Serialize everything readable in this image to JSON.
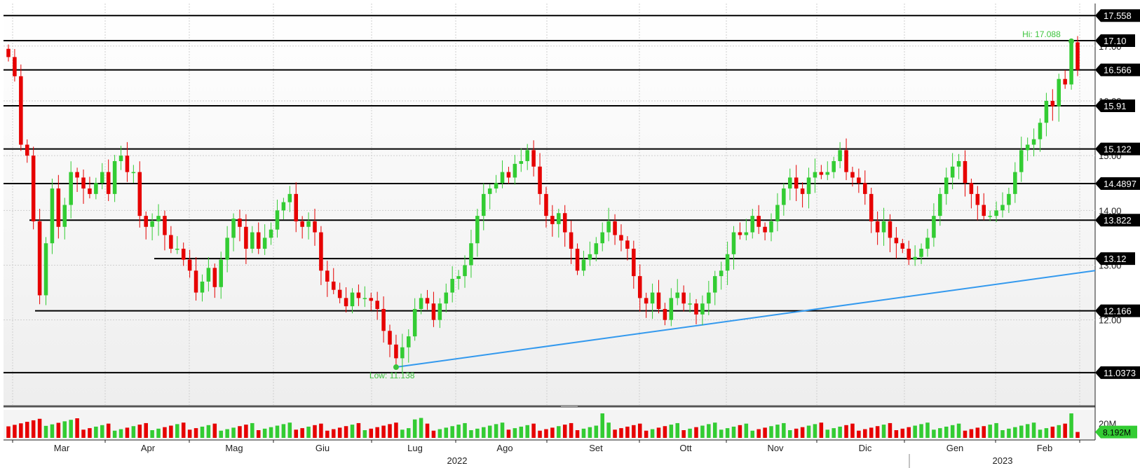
{
  "chart_data": {
    "type": "candlestick",
    "colors": {
      "up": "#33cc33",
      "down": "#e60000",
      "trendline": "#3399ee",
      "level_line": "#000000",
      "hi_low_label": "#3cc43c"
    },
    "y_axis": {
      "range": [
        10.55,
        17.65
      ],
      "tick_labels": [
        "12.00",
        "13.00",
        "14.00",
        "15.00",
        "16.00",
        "17.00"
      ]
    },
    "x_axis": {
      "month_labels": [
        "Mar",
        "Apr",
        "Mag",
        "Giu",
        "Lug",
        "Ago",
        "Set",
        "Ott",
        "Nov",
        "Dic",
        "Gen",
        "Feb"
      ],
      "year_labels": [
        "2022",
        "2023"
      ]
    },
    "levels": [
      "17.558",
      "17.10",
      "16.566",
      "15.91",
      "15.122",
      "14.4897",
      "13.822",
      "13.12",
      "12.166",
      "11.0373"
    ],
    "hi_label": "Hi: 17.088",
    "low_label": "Low: 11.138",
    "hi_value": 17.088,
    "low_value": 11.138,
    "trendline": {
      "from": 11.138,
      "to": 12.9
    },
    "volume": {
      "tick_label": "20M",
      "last_label": "8.192M",
      "range_m": [
        0,
        36
      ]
    },
    "closes": [
      16.8,
      16.45,
      15.2,
      15.0,
      13.8,
      12.45,
      13.4,
      14.4,
      13.7,
      14.1,
      14.7,
      14.6,
      14.4,
      14.3,
      14.5,
      14.7,
      14.3,
      14.9,
      15.0,
      14.7,
      14.7,
      13.9,
      13.7,
      13.8,
      13.9,
      13.55,
      13.3,
      13.3,
      13.1,
      12.9,
      12.5,
      12.7,
      12.95,
      12.6,
      13.1,
      13.5,
      13.85,
      13.7,
      13.3,
      13.6,
      13.3,
      13.5,
      13.65,
      14.0,
      14.15,
      14.3,
      13.8,
      13.7,
      13.8,
      13.6,
      12.9,
      12.7,
      12.55,
      12.4,
      12.25,
      12.5,
      12.4,
      12.4,
      12.35,
      12.2,
      11.8,
      11.55,
      11.3,
      11.5,
      11.7,
      12.2,
      12.4,
      12.3,
      12.0,
      12.3,
      12.5,
      12.75,
      12.8,
      13.0,
      13.4,
      13.9,
      14.3,
      14.4,
      14.5,
      14.7,
      14.6,
      14.85,
      14.9,
      15.1,
      14.8,
      14.3,
      13.9,
      13.75,
      13.95,
      13.6,
      13.3,
      12.9,
      13.1,
      13.2,
      13.4,
      13.6,
      13.8,
      13.55,
      13.45,
      13.3,
      12.8,
      12.4,
      12.3,
      12.5,
      12.2,
      12.0,
      12.4,
      12.5,
      12.3,
      12.3,
      12.1,
      12.3,
      12.5,
      12.8,
      12.9,
      13.2,
      13.6,
      13.55,
      13.6,
      13.9,
      13.7,
      13.6,
      13.8,
      14.1,
      14.4,
      14.6,
      14.4,
      14.3,
      14.6,
      14.7,
      14.65,
      14.7,
      14.9,
      15.1,
      14.7,
      14.6,
      14.5,
      14.3,
      13.8,
      13.6,
      13.8,
      13.5,
      13.4,
      13.3,
      13.1,
      13.15,
      13.3,
      13.5,
      13.9,
      14.3,
      14.6,
      14.8,
      14.9,
      14.5,
      14.3,
      14.1,
      13.9,
      13.9,
      14.0,
      14.1,
      14.3,
      14.7,
      15.1,
      15.2,
      15.3,
      15.6,
      16.0,
      15.9,
      16.4,
      16.3,
      17.07,
      16.566
    ]
  }
}
